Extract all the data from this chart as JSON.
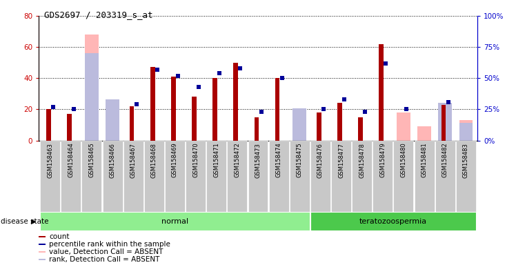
{
  "title": "GDS2697 / 203319_s_at",
  "samples": [
    "GSM158463",
    "GSM158464",
    "GSM158465",
    "GSM158466",
    "GSM158467",
    "GSM158468",
    "GSM158469",
    "GSM158470",
    "GSM158471",
    "GSM158472",
    "GSM158473",
    "GSM158474",
    "GSM158475",
    "GSM158476",
    "GSM158477",
    "GSM158478",
    "GSM158479",
    "GSM158480",
    "GSM158481",
    "GSM158482",
    "GSM158483"
  ],
  "count": [
    20,
    17,
    null,
    null,
    22,
    47,
    41,
    28,
    40,
    50,
    15,
    40,
    null,
    18,
    24,
    15,
    62,
    null,
    null,
    23,
    null
  ],
  "percentile_rank": [
    27,
    25,
    null,
    null,
    29,
    57,
    52,
    43,
    54,
    58,
    23,
    50,
    null,
    25,
    33,
    23,
    62,
    25,
    null,
    31,
    null
  ],
  "absent_value": [
    null,
    null,
    68,
    22,
    null,
    null,
    null,
    null,
    null,
    null,
    null,
    null,
    19,
    null,
    null,
    null,
    null,
    18,
    9,
    null,
    13
  ],
  "absent_rank": [
    null,
    null,
    70,
    33,
    null,
    null,
    null,
    null,
    null,
    null,
    null,
    null,
    26,
    null,
    null,
    null,
    null,
    null,
    null,
    30,
    14
  ],
  "disease_groups": [
    {
      "label": "normal",
      "start": 0,
      "end": 12,
      "color": "#90EE90"
    },
    {
      "label": "teratozoospermia",
      "start": 13,
      "end": 20,
      "color": "#4CC94C"
    }
  ],
  "ylim_left": [
    0,
    80
  ],
  "ylim_right": [
    0,
    100
  ],
  "yticks_left": [
    0,
    20,
    40,
    60,
    80
  ],
  "yticks_right": [
    0,
    25,
    50,
    75,
    100
  ],
  "ylabel_left_color": "#cc0000",
  "ylabel_right_color": "#0000cc",
  "bar_color_count": "#AA0000",
  "bar_color_rank": "#000099",
  "bar_color_absent_value": "#FFB6B6",
  "bar_color_absent_rank": "#BBBBDD",
  "background_label": "#C8C8C8",
  "disease_state_label": "disease state",
  "legend_items": [
    {
      "label": "count",
      "color": "#AA0000",
      "marker": "s"
    },
    {
      "label": "percentile rank within the sample",
      "color": "#000099",
      "marker": "s"
    },
    {
      "label": "value, Detection Call = ABSENT",
      "color": "#FFB6B6",
      "marker": "s"
    },
    {
      "label": "rank, Detection Call = ABSENT",
      "color": "#BBBBDD",
      "marker": "s"
    }
  ]
}
